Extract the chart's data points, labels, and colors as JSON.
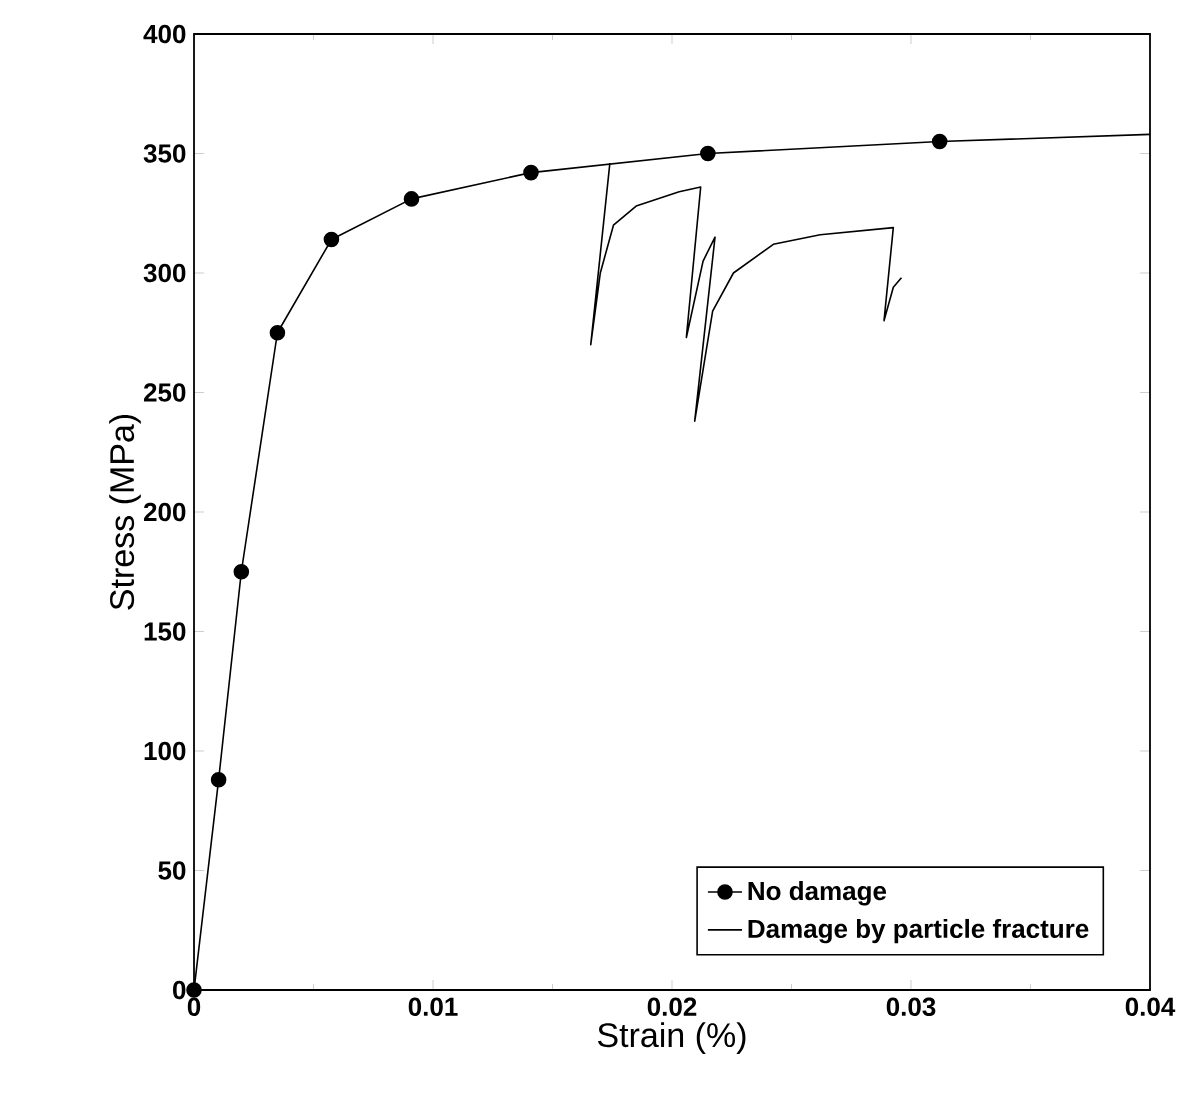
{
  "chart_data": {
    "type": "line",
    "xlabel": "Strain (%)",
    "ylabel": "Stress (MPa)",
    "xlim": [
      0,
      0.04
    ],
    "ylim": [
      0,
      400
    ],
    "xticks": [
      0,
      0.01,
      0.02,
      0.03,
      0.04
    ],
    "yticks": [
      0,
      50,
      100,
      150,
      200,
      250,
      300,
      350,
      400
    ],
    "legend": "bottom right",
    "grid": false,
    "series": [
      {
        "name": "No damage",
        "color": "#000000",
        "marker": "circle",
        "x": [
          0,
          0.00103,
          0.00198,
          0.00349,
          0.00575,
          0.0091,
          0.0141,
          0.0215,
          0.0312,
          0.04
        ],
        "values": [
          0,
          88,
          175,
          275,
          314,
          331,
          342,
          350,
          355,
          358
        ]
      },
      {
        "name": "Damage by particle fracture",
        "color": "#000000",
        "marker": "none",
        "x": [
          0.0174,
          0.0166,
          0.017,
          0.01755,
          0.0185,
          0.0203,
          0.0212,
          0.0206,
          0.0213,
          0.0218,
          0.02095,
          0.0217,
          0.02257,
          0.02424,
          0.0262,
          0.02926,
          0.02887,
          0.02926,
          0.0296
        ],
        "values": [
          346,
          270,
          300,
          320,
          328,
          334,
          336,
          273,
          305,
          315,
          238,
          284,
          300,
          312,
          316,
          319,
          280,
          294,
          298
        ]
      }
    ]
  }
}
